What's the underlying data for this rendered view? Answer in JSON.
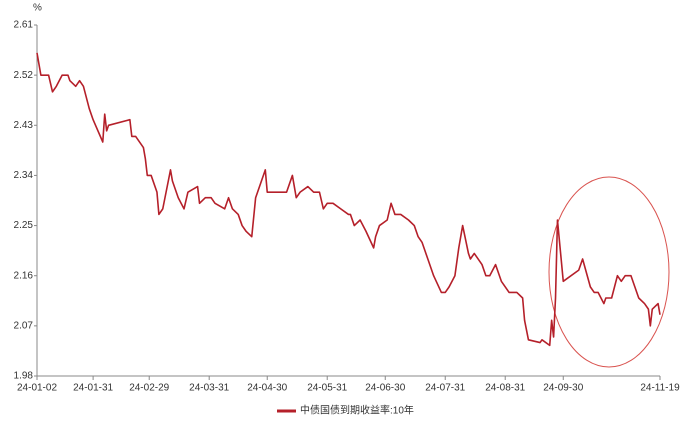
{
  "chart_data": {
    "type": "line",
    "y_label": "%",
    "x": [
      "24-01-02",
      "24-01-04",
      "24-01-08",
      "24-01-10",
      "24-01-12",
      "24-01-15",
      "24-01-18",
      "24-01-19",
      "24-01-22",
      "24-01-24",
      "24-01-26",
      "24-01-29",
      "24-01-31",
      "24-02-05",
      "24-02-06",
      "24-02-07",
      "24-02-08",
      "24-02-19",
      "24-02-20",
      "24-02-22",
      "24-02-26",
      "24-02-27",
      "24-02-28",
      "24-03-01",
      "24-03-04",
      "24-03-05",
      "24-03-07",
      "24-03-11",
      "24-03-12",
      "24-03-15",
      "24-03-18",
      "24-03-20",
      "24-03-25",
      "24-03-26",
      "24-03-29",
      "24-04-01",
      "24-04-03",
      "24-04-08",
      "24-04-10",
      "24-04-12",
      "24-04-15",
      "24-04-17",
      "24-04-19",
      "24-04-22",
      "24-04-24",
      "24-04-29",
      "24-04-30",
      "24-05-06",
      "24-05-08",
      "24-05-10",
      "24-05-13",
      "24-05-15",
      "24-05-17",
      "24-05-21",
      "24-05-24",
      "24-05-27",
      "24-05-29",
      "24-05-31",
      "24-06-03",
      "24-06-07",
      "24-06-11",
      "24-06-12",
      "24-06-14",
      "24-06-17",
      "24-06-20",
      "24-06-24",
      "24-06-25",
      "24-06-27",
      "24-07-01",
      "24-07-03",
      "24-07-05",
      "24-07-08",
      "24-07-12",
      "24-07-15",
      "24-07-17",
      "24-07-19",
      "24-07-22",
      "24-07-25",
      "24-07-29",
      "24-07-31",
      "24-08-02",
      "24-08-05",
      "24-08-07",
      "24-08-09",
      "24-08-12",
      "24-08-13",
      "24-08-15",
      "24-08-19",
      "24-08-21",
      "24-08-23",
      "24-08-26",
      "24-08-27",
      "24-08-29",
      "24-09-02",
      "24-09-04",
      "24-09-06",
      "24-09-09",
      "24-09-10",
      "24-09-12",
      "24-09-18",
      "24-09-19",
      "24-09-23",
      "24-09-24",
      "24-09-25",
      "24-09-26",
      "24-09-27",
      "24-09-30",
      "24-10-08",
      "24-10-10",
      "24-10-14",
      "24-10-16",
      "24-10-18",
      "24-10-21",
      "24-10-22",
      "24-10-25",
      "24-10-28",
      "24-10-30",
      "24-11-01",
      "24-11-04",
      "24-11-06",
      "24-11-08",
      "24-11-11",
      "24-11-13",
      "24-11-14",
      "24-11-15",
      "24-11-18",
      "24-11-19"
    ],
    "series": [
      {
        "name": "中债国债到期收益率:10年",
        "color": "#b5202a",
        "values": [
          2.56,
          2.52,
          2.52,
          2.49,
          2.5,
          2.52,
          2.52,
          2.51,
          2.5,
          2.51,
          2.5,
          2.46,
          2.44,
          2.4,
          2.45,
          2.42,
          2.43,
          2.44,
          2.41,
          2.41,
          2.39,
          2.37,
          2.34,
          2.34,
          2.31,
          2.27,
          2.28,
          2.35,
          2.33,
          2.3,
          2.28,
          2.31,
          2.32,
          2.29,
          2.3,
          2.3,
          2.29,
          2.28,
          2.3,
          2.28,
          2.27,
          2.25,
          2.24,
          2.23,
          2.3,
          2.35,
          2.31,
          2.31,
          2.31,
          2.31,
          2.34,
          2.3,
          2.31,
          2.32,
          2.31,
          2.31,
          2.28,
          2.29,
          2.29,
          2.28,
          2.27,
          2.27,
          2.25,
          2.26,
          2.24,
          2.21,
          2.23,
          2.25,
          2.26,
          2.29,
          2.27,
          2.27,
          2.26,
          2.25,
          2.23,
          2.22,
          2.19,
          2.16,
          2.13,
          2.13,
          2.14,
          2.16,
          2.21,
          2.25,
          2.2,
          2.19,
          2.2,
          2.18,
          2.16,
          2.16,
          2.18,
          2.17,
          2.15,
          2.13,
          2.13,
          2.13,
          2.12,
          2.08,
          2.045,
          2.04,
          2.045,
          2.035,
          2.08,
          2.05,
          2.12,
          2.26,
          2.15,
          2.17,
          2.19,
          2.14,
          2.13,
          2.13,
          2.11,
          2.12,
          2.12,
          2.16,
          2.15,
          2.16,
          2.16,
          2.14,
          2.12,
          2.11,
          2.1,
          2.07,
          2.1,
          2.11,
          2.09
        ]
      }
    ],
    "xlim": [
      "24-01-02",
      "24-11-19"
    ],
    "xticks": [
      "24-01-02",
      "24-01-31",
      "24-02-29",
      "24-03-31",
      "24-04-30",
      "24-05-31",
      "24-06-30",
      "24-07-31",
      "24-08-31",
      "24-09-30",
      "24-11-19"
    ],
    "ylim": [
      1.98,
      2.61
    ],
    "yticks": [
      1.98,
      2.07,
      2.16,
      2.25,
      2.34,
      2.43,
      2.52,
      2.61
    ],
    "grid": false
  }
}
